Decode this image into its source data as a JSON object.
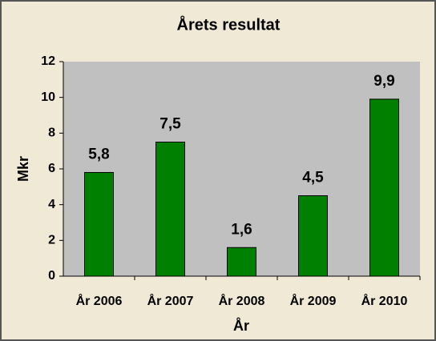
{
  "chart_data": {
    "type": "bar",
    "title": "Årets resultat",
    "x_label": "År",
    "y_label": "Mkr",
    "categories": [
      "År 2006",
      "År 2007",
      "År 2008",
      "År 2009",
      "År 2010"
    ],
    "values": [
      5.8,
      7.5,
      1.6,
      4.5,
      9.9
    ],
    "value_labels": [
      "5,8",
      "7,5",
      "1,6",
      "4,5",
      "9,9"
    ],
    "color": "#008000",
    "ylim": [
      0,
      12
    ],
    "yticks": [
      0,
      2,
      4,
      6,
      8,
      10,
      12
    ],
    "grid": false
  }
}
